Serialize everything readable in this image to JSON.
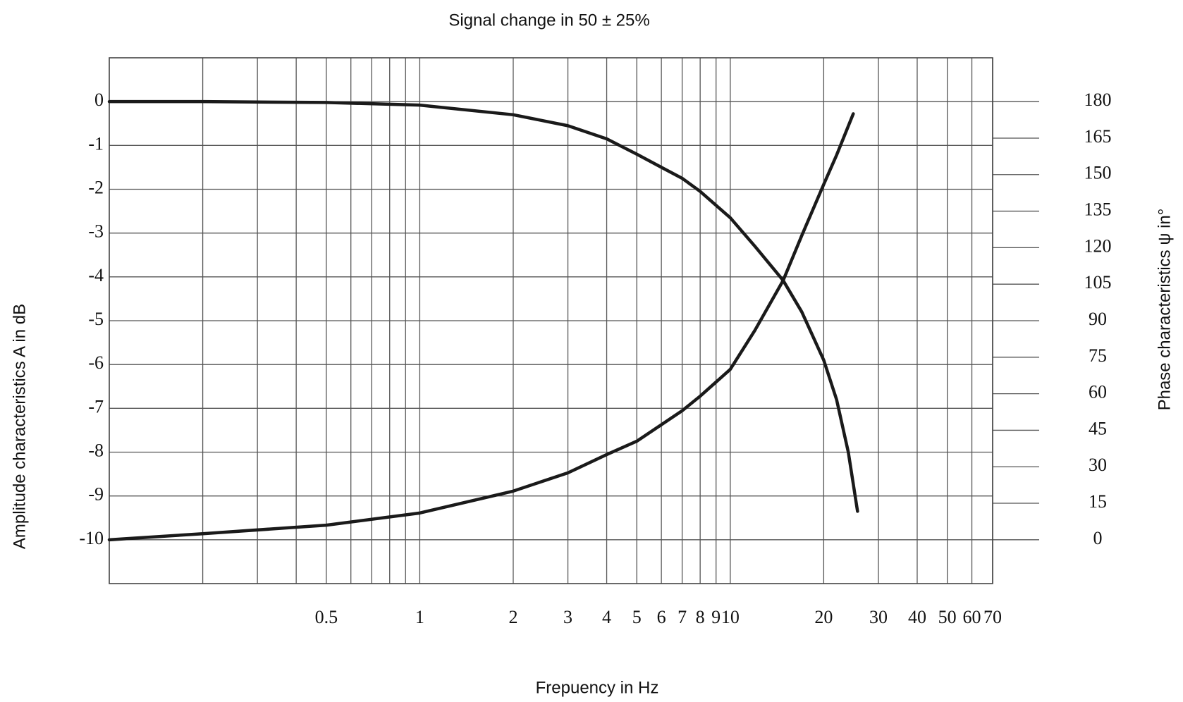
{
  "chart_data": {
    "type": "line",
    "title": "Signal change in 50 ± 25%",
    "xlabel": "Frepuency in Hz",
    "ylabel": "Amplitude characteristics A  in dB",
    "y2label": "Phase characteristics  ψ in°",
    "xscale": "log",
    "xlim": [
      0.1,
      70
    ],
    "xticks": [
      0.5,
      1,
      2,
      3,
      4,
      5,
      6,
      7,
      8,
      9,
      10,
      20,
      30,
      40,
      50,
      60,
      70
    ],
    "xgrid_minor": [
      0.2,
      0.3,
      0.4,
      0.6,
      0.7,
      0.8,
      0.9
    ],
    "ylim": [
      -11,
      1
    ],
    "yticks": [
      0,
      -1,
      -2,
      -3,
      -4,
      -5,
      -6,
      -7,
      -8,
      -9,
      -10
    ],
    "y2lim": [
      -18,
      198
    ],
    "y2ticks": [
      0,
      15,
      30,
      45,
      60,
      75,
      90,
      105,
      120,
      135,
      150,
      165,
      180
    ],
    "grid": true,
    "series": [
      {
        "color": "#1a1a1a",
        "x": [
          0.1,
          0.2,
          0.5,
          1,
          2,
          3,
          4,
          5,
          6,
          7,
          8,
          10,
          12,
          14.8,
          17,
          20,
          22,
          24,
          25.7
        ],
        "values": [
          0,
          0,
          -0.02,
          -0.08,
          -0.3,
          -0.55,
          -0.85,
          -1.2,
          -1.5,
          -1.75,
          -2.05,
          -2.65,
          -3.3,
          -4.08,
          -4.8,
          -5.9,
          -6.8,
          -8.0,
          -9.35
        ]
      },
      {
        "color": "#1a1a1a",
        "axis": "y2",
        "x": [
          0.1,
          0.2,
          0.5,
          1,
          2,
          3,
          4,
          5,
          7,
          8,
          10,
          12,
          14.8,
          17,
          20,
          22,
          24.9
        ],
        "values": [
          0,
          2.5,
          6,
          11,
          20,
          27.5,
          35,
          40.5,
          53,
          59,
          70,
          86,
          106.5,
          125,
          146,
          158,
          175
        ]
      }
    ]
  }
}
